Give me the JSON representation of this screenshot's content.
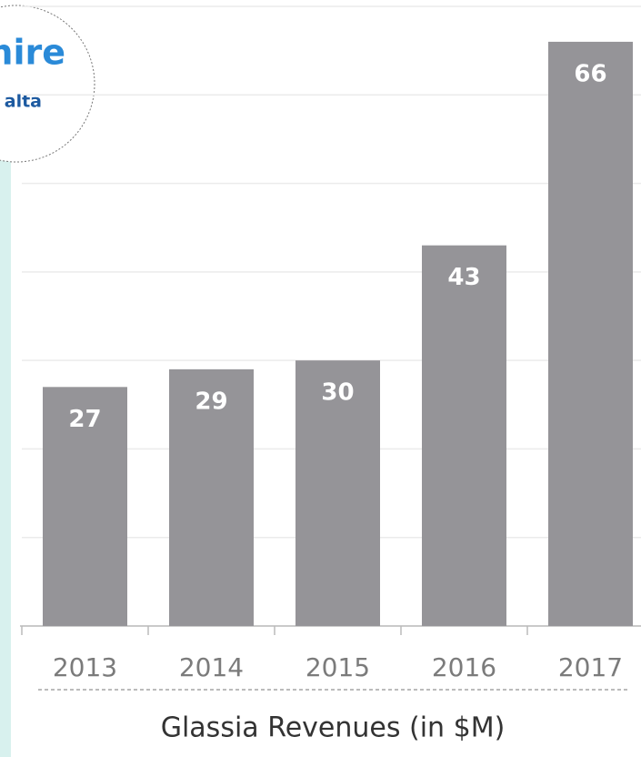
{
  "logo": {
    "name": "hire",
    "sub": "alta"
  },
  "chart_data": {
    "type": "bar",
    "title": "Glassia Revenues (in $M)",
    "categories": [
      "2013",
      "2014",
      "2015",
      "2016",
      "2017"
    ],
    "values": [
      27,
      29,
      30,
      43,
      66
    ],
    "color": "#959498",
    "ylim": [
      0,
      70
    ],
    "yticks": [
      0,
      10,
      20,
      30,
      40,
      50,
      60,
      70
    ],
    "grid": true
  }
}
